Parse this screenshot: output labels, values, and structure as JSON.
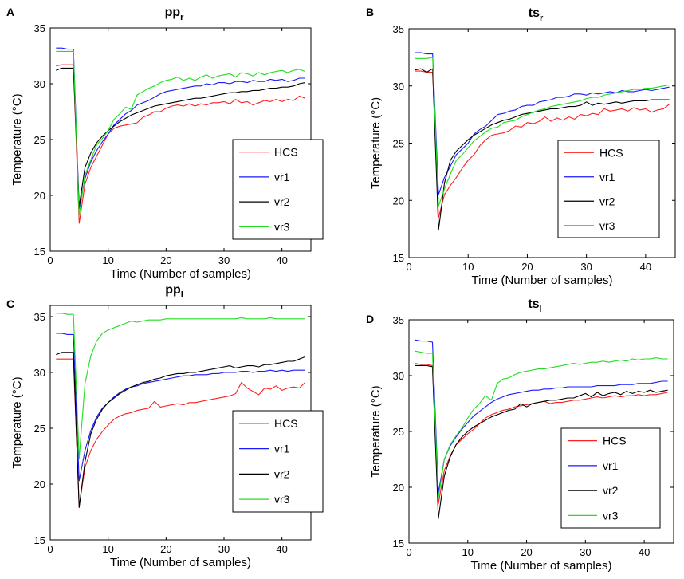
{
  "colors": {
    "HCS": "#ff2020",
    "vr1": "#1a1aff",
    "vr2": "#000000",
    "vr3": "#22dd22"
  },
  "chart_data": [
    {
      "panel": "A",
      "type": "line",
      "title_main": "pp",
      "title_sub": "r",
      "xlabel": "Time (Number of samples)",
      "ylabel": "Temperature (°C)",
      "xlim": [
        0,
        45
      ],
      "ylim": [
        15,
        35
      ],
      "xticks": [
        0,
        10,
        20,
        30,
        40
      ],
      "yticks": [
        15,
        20,
        25,
        30,
        35
      ],
      "legend_position": "center-right",
      "x": [
        1,
        2,
        3,
        4,
        5,
        6,
        7,
        8,
        9,
        10,
        11,
        12,
        13,
        14,
        15,
        16,
        17,
        18,
        19,
        20,
        21,
        22,
        23,
        24,
        25,
        26,
        27,
        28,
        29,
        30,
        31,
        32,
        33,
        34,
        35,
        36,
        37,
        38,
        39,
        40,
        41,
        42,
        43,
        44
      ],
      "series": [
        {
          "name": "HCS",
          "values": [
            31.6,
            31.7,
            31.7,
            31.7,
            17.5,
            21.0,
            22.5,
            23.5,
            24.5,
            25.5,
            26.0,
            26.2,
            26.3,
            26.4,
            26.5,
            27.0,
            27.2,
            27.5,
            27.5,
            27.8,
            28.0,
            28.1,
            28.0,
            28.2,
            28.0,
            28.2,
            28.1,
            28.3,
            28.3,
            28.4,
            28.2,
            28.6,
            28.3,
            28.4,
            28.1,
            28.3,
            28.5,
            28.4,
            28.6,
            28.4,
            28.6,
            28.5,
            28.9,
            28.7
          ]
        },
        {
          "name": "vr1",
          "values": [
            33.2,
            33.2,
            33.1,
            33.1,
            18.8,
            21.5,
            23.0,
            24.0,
            24.8,
            25.5,
            26.3,
            26.8,
            27.3,
            27.6,
            28.1,
            28.3,
            28.5,
            28.8,
            29.1,
            29.3,
            29.4,
            29.5,
            29.6,
            29.7,
            29.8,
            29.8,
            30.0,
            29.9,
            30.1,
            30.1,
            30.0,
            30.2,
            30.2,
            30.1,
            30.3,
            30.2,
            30.2,
            30.4,
            30.3,
            30.4,
            30.2,
            30.3,
            30.5,
            30.5
          ]
        },
        {
          "name": "vr2",
          "values": [
            31.2,
            31.4,
            31.4,
            31.4,
            19.0,
            22.5,
            23.8,
            24.7,
            25.3,
            25.8,
            26.2,
            26.6,
            26.9,
            27.2,
            27.4,
            27.6,
            27.8,
            28.0,
            28.1,
            28.2,
            28.3,
            28.4,
            28.5,
            28.6,
            28.7,
            28.7,
            28.8,
            28.9,
            29.0,
            29.1,
            29.2,
            29.2,
            29.3,
            29.3,
            29.4,
            29.4,
            29.5,
            29.6,
            29.6,
            29.7,
            29.7,
            29.8,
            30.0,
            30.1
          ]
        },
        {
          "name": "vr3",
          "values": [
            32.9,
            32.9,
            32.9,
            32.9,
            18.2,
            21.8,
            23.2,
            24.5,
            25.1,
            25.8,
            26.8,
            27.3,
            27.9,
            27.7,
            29.0,
            29.3,
            29.6,
            29.8,
            30.1,
            30.3,
            30.4,
            30.6,
            30.3,
            30.5,
            30.3,
            30.6,
            30.8,
            30.5,
            30.7,
            30.8,
            30.9,
            30.6,
            31.0,
            30.9,
            30.7,
            31.0,
            30.8,
            31.0,
            31.1,
            31.2,
            31.0,
            31.2,
            31.3,
            31.1
          ]
        }
      ]
    },
    {
      "panel": "B",
      "type": "line",
      "title_main": "ts",
      "title_sub": "r",
      "xlabel": "Time (Number of samples)",
      "ylabel": "Temperature (°C)",
      "xlim": [
        0,
        45
      ],
      "ylim": [
        15,
        35
      ],
      "xticks": [
        0,
        10,
        20,
        30,
        40
      ],
      "yticks": [
        15,
        20,
        25,
        30,
        35
      ],
      "legend_position": "center-right",
      "x": [
        1,
        2,
        3,
        4,
        5,
        6,
        7,
        8,
        9,
        10,
        11,
        12,
        13,
        14,
        15,
        16,
        17,
        18,
        19,
        20,
        21,
        22,
        23,
        24,
        25,
        26,
        27,
        28,
        29,
        30,
        31,
        32,
        33,
        34,
        35,
        36,
        37,
        38,
        39,
        40,
        41,
        42,
        43,
        44
      ],
      "series": [
        {
          "name": "HCS",
          "values": [
            31.3,
            31.3,
            31.2,
            31.2,
            18.5,
            20.5,
            21.3,
            22.0,
            22.8,
            23.5,
            24.0,
            24.8,
            25.3,
            25.7,
            25.8,
            25.9,
            26.1,
            26.5,
            26.4,
            26.8,
            26.7,
            26.9,
            27.3,
            26.9,
            27.2,
            27.0,
            27.3,
            27.1,
            27.5,
            27.4,
            27.6,
            27.5,
            28.0,
            27.8,
            27.9,
            28.0,
            27.8,
            28.1,
            27.9,
            28.0,
            27.7,
            27.9,
            28.0,
            28.4
          ]
        },
        {
          "name": "vr1",
          "values": [
            32.9,
            32.9,
            32.8,
            32.8,
            20.5,
            22.0,
            23.0,
            24.0,
            24.5,
            25.0,
            25.8,
            26.2,
            26.5,
            27.0,
            27.5,
            27.6,
            27.8,
            27.9,
            28.2,
            28.3,
            28.3,
            28.6,
            28.7,
            28.8,
            29.0,
            29.0,
            29.1,
            29.3,
            29.3,
            29.2,
            29.4,
            29.3,
            29.4,
            29.5,
            29.4,
            29.6,
            29.5,
            29.5,
            29.6,
            29.7,
            29.6,
            29.7,
            29.8,
            29.9
          ]
        },
        {
          "name": "vr2",
          "values": [
            31.4,
            31.5,
            31.2,
            31.5,
            17.4,
            21.5,
            23.5,
            24.3,
            24.8,
            25.3,
            25.7,
            26.0,
            26.3,
            26.6,
            26.8,
            27.0,
            27.1,
            27.3,
            27.5,
            27.6,
            27.7,
            27.8,
            27.9,
            28.0,
            28.0,
            28.1,
            28.2,
            28.2,
            28.3,
            28.6,
            28.3,
            28.5,
            28.4,
            28.5,
            28.6,
            28.5,
            28.6,
            28.7,
            28.7,
            28.7,
            28.8,
            28.8,
            28.8,
            28.8
          ]
        },
        {
          "name": "vr3",
          "values": [
            32.4,
            32.4,
            32.4,
            32.5,
            19.5,
            21.0,
            22.3,
            23.5,
            24.0,
            24.6,
            25.2,
            25.6,
            26.0,
            26.3,
            26.4,
            26.8,
            26.9,
            27.0,
            27.3,
            27.5,
            27.7,
            27.9,
            28.0,
            28.2,
            28.3,
            28.4,
            28.5,
            28.6,
            28.7,
            28.9,
            29.0,
            29.0,
            29.2,
            29.3,
            29.4,
            29.5,
            29.6,
            29.7,
            29.7,
            29.8,
            29.8,
            29.9,
            30.0,
            30.1
          ]
        }
      ]
    },
    {
      "panel": "C",
      "type": "line",
      "title_main": "pp",
      "title_sub": "l",
      "xlabel": "Time (Number of samples)",
      "ylabel": "Temperature (°C)",
      "xlim": [
        0,
        45
      ],
      "ylim": [
        15,
        36
      ],
      "xticks": [
        0,
        10,
        20,
        30,
        40
      ],
      "yticks": [
        15,
        20,
        25,
        30,
        35
      ],
      "legend_position": "center-right",
      "x": [
        1,
        2,
        3,
        4,
        5,
        6,
        7,
        8,
        9,
        10,
        11,
        12,
        13,
        14,
        15,
        16,
        17,
        18,
        19,
        20,
        21,
        22,
        23,
        24,
        25,
        26,
        27,
        28,
        29,
        30,
        31,
        32,
        33,
        34,
        35,
        36,
        37,
        38,
        39,
        40,
        41,
        42,
        43,
        44
      ],
      "series": [
        {
          "name": "HCS",
          "values": [
            31.2,
            31.2,
            31.2,
            31.2,
            18.0,
            21.5,
            23.0,
            24.0,
            24.7,
            25.3,
            25.8,
            26.1,
            26.3,
            26.4,
            26.6,
            26.7,
            26.8,
            27.4,
            26.9,
            27.0,
            27.1,
            27.2,
            27.1,
            27.3,
            27.3,
            27.4,
            27.5,
            27.6,
            27.7,
            27.8,
            27.9,
            28.1,
            29.1,
            28.6,
            28.3,
            28.0,
            28.6,
            28.5,
            28.8,
            28.4,
            28.6,
            28.7,
            28.6,
            29.1
          ]
        },
        {
          "name": "vr1",
          "values": [
            33.5,
            33.5,
            33.4,
            33.4,
            20.3,
            23.0,
            24.8,
            26.0,
            26.8,
            27.3,
            27.8,
            28.2,
            28.5,
            28.7,
            28.8,
            29.0,
            29.1,
            29.2,
            29.3,
            29.4,
            29.5,
            29.6,
            29.7,
            29.7,
            29.8,
            29.8,
            29.8,
            29.9,
            29.9,
            30.0,
            30.0,
            30.0,
            30.1,
            30.1,
            30.0,
            30.1,
            30.1,
            30.2,
            30.1,
            30.2,
            30.1,
            30.2,
            30.2,
            30.2
          ]
        },
        {
          "name": "vr2",
          "values": [
            31.6,
            31.8,
            31.8,
            31.8,
            17.9,
            22.0,
            24.5,
            25.8,
            26.7,
            27.3,
            27.7,
            28.1,
            28.4,
            28.7,
            28.9,
            29.1,
            29.2,
            29.4,
            29.5,
            29.7,
            29.8,
            29.9,
            29.9,
            30.0,
            30.0,
            30.1,
            30.2,
            30.3,
            30.4,
            30.5,
            30.6,
            30.4,
            30.5,
            30.6,
            30.6,
            30.5,
            30.7,
            30.7,
            30.8,
            30.9,
            31.0,
            31.0,
            31.2,
            31.4
          ]
        },
        {
          "name": "vr3",
          "values": [
            35.3,
            35.3,
            35.2,
            35.2,
            22.3,
            29.0,
            31.5,
            32.8,
            33.5,
            33.8,
            34.0,
            34.2,
            34.4,
            34.6,
            34.5,
            34.6,
            34.7,
            34.7,
            34.7,
            34.8,
            34.8,
            34.8,
            34.8,
            34.8,
            34.8,
            34.8,
            34.8,
            34.8,
            34.8,
            34.8,
            34.8,
            34.8,
            34.9,
            34.8,
            34.8,
            34.8,
            34.8,
            34.9,
            34.8,
            34.8,
            34.8,
            34.8,
            34.8,
            34.8
          ]
        }
      ]
    },
    {
      "panel": "D",
      "type": "line",
      "title_main": "ts",
      "title_sub": "l",
      "xlabel": "Time (Number of samples)",
      "ylabel": "Temperature (°C)",
      "xlim": [
        0,
        45
      ],
      "ylim": [
        15,
        35
      ],
      "xticks": [
        0,
        10,
        20,
        30,
        40
      ],
      "yticks": [
        15,
        20,
        25,
        30,
        35
      ],
      "legend_position": "center-right",
      "x": [
        1,
        2,
        3,
        4,
        5,
        6,
        7,
        8,
        9,
        10,
        11,
        12,
        13,
        14,
        15,
        16,
        17,
        18,
        19,
        20,
        21,
        22,
        23,
        24,
        25,
        26,
        27,
        28,
        29,
        30,
        31,
        32,
        33,
        34,
        35,
        36,
        37,
        38,
        39,
        40,
        41,
        42,
        43,
        44
      ],
      "series": [
        {
          "name": "HCS",
          "values": [
            31.1,
            31.0,
            31.0,
            30.9,
            18.5,
            21.5,
            22.8,
            23.8,
            24.3,
            24.8,
            25.2,
            25.7,
            26.2,
            26.5,
            26.7,
            26.9,
            27.0,
            27.2,
            27.3,
            27.4,
            27.5,
            27.6,
            27.7,
            27.5,
            27.6,
            27.6,
            27.7,
            27.8,
            27.8,
            27.9,
            28.0,
            28.1,
            28.0,
            28.1,
            28.2,
            28.1,
            28.2,
            28.2,
            28.3,
            28.2,
            28.3,
            28.3,
            28.4,
            28.5
          ]
        },
        {
          "name": "vr1",
          "values": [
            33.2,
            33.1,
            33.1,
            33.0,
            19.5,
            22.5,
            23.7,
            24.5,
            25.2,
            25.8,
            26.4,
            26.8,
            27.2,
            27.6,
            27.9,
            28.1,
            28.3,
            28.4,
            28.5,
            28.6,
            28.7,
            28.7,
            28.8,
            28.8,
            28.9,
            28.9,
            29.0,
            29.0,
            29.0,
            29.0,
            29.0,
            29.1,
            29.1,
            29.1,
            29.1,
            29.2,
            29.2,
            29.2,
            29.3,
            29.3,
            29.3,
            29.4,
            29.5,
            29.5
          ]
        },
        {
          "name": "vr2",
          "values": [
            30.9,
            30.9,
            30.9,
            30.8,
            17.2,
            21.0,
            22.7,
            23.8,
            24.5,
            25.0,
            25.4,
            25.7,
            26.0,
            26.3,
            26.5,
            26.7,
            26.9,
            27.0,
            27.5,
            27.2,
            27.5,
            27.6,
            27.7,
            27.8,
            27.8,
            27.9,
            28.0,
            28.0,
            28.2,
            28.4,
            28.1,
            28.5,
            28.2,
            28.4,
            28.5,
            28.3,
            28.6,
            28.4,
            28.6,
            28.5,
            28.7,
            28.5,
            28.6,
            28.7
          ]
        },
        {
          "name": "vr3",
          "values": [
            32.2,
            32.1,
            32.0,
            32.0,
            19.0,
            22.5,
            23.8,
            24.6,
            25.3,
            26.2,
            27.0,
            27.5,
            28.2,
            27.8,
            29.3,
            29.7,
            29.8,
            30.1,
            30.3,
            30.4,
            30.5,
            30.6,
            30.6,
            30.7,
            30.8,
            30.9,
            31.0,
            31.1,
            31.0,
            31.1,
            31.2,
            31.2,
            31.3,
            31.2,
            31.3,
            31.4,
            31.3,
            31.5,
            31.4,
            31.5,
            31.5,
            31.6,
            31.5,
            31.5
          ]
        }
      ]
    }
  ]
}
